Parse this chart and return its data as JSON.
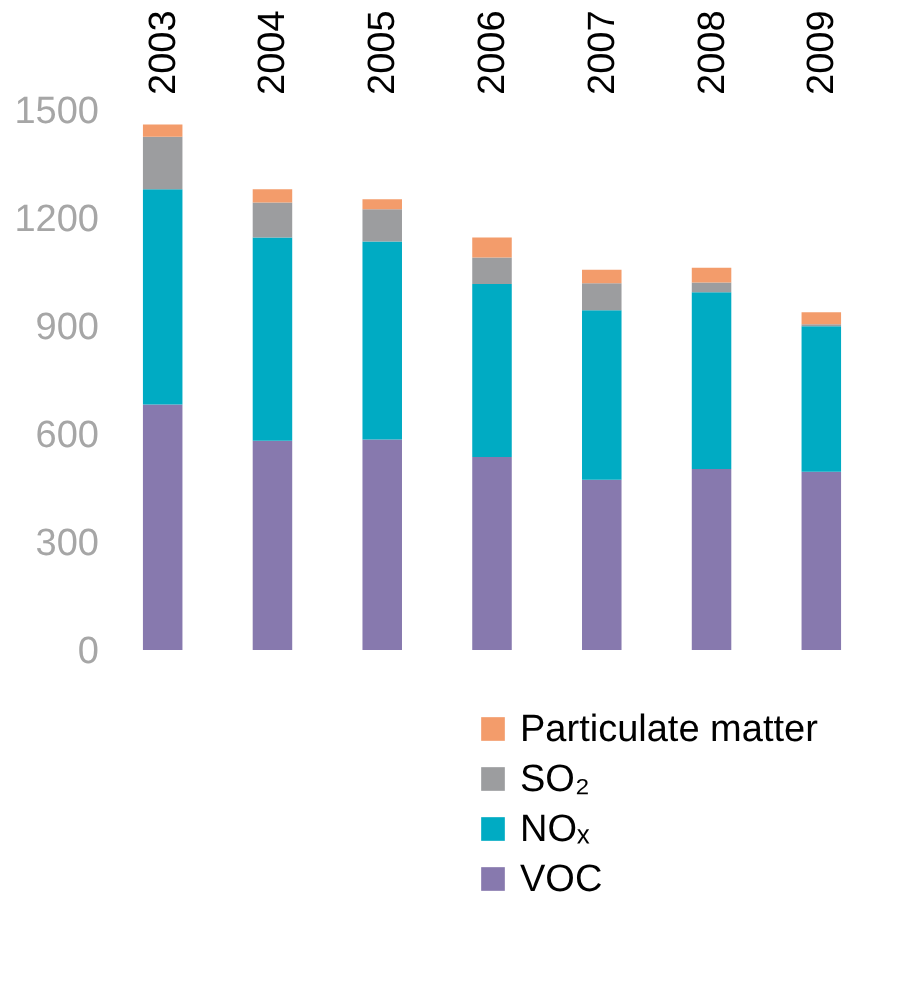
{
  "chart_data": {
    "type": "bar",
    "stacked": true,
    "categories": [
      "2003",
      "2004",
      "2005",
      "2006",
      "2007",
      "2008",
      "2009"
    ],
    "series": [
      {
        "name": "VOC",
        "color": "#8779ae",
        "values": [
          682,
          581,
          585,
          536,
          473,
          503,
          495
        ]
      },
      {
        "name": "NOₓ",
        "color": "#00abc3",
        "values": [
          598,
          565,
          550,
          481,
          471,
          491,
          404
        ]
      },
      {
        "name": "SO₂",
        "color": "#9c9d9f",
        "values": [
          146,
          97,
          89,
          73,
          75,
          27,
          6
        ]
      },
      {
        "name": "Particulate matter",
        "color": "#f39c6b",
        "values": [
          34,
          37,
          28,
          56,
          37,
          41,
          33
        ]
      }
    ],
    "ylim": [
      0,
      1500
    ],
    "yticks": [
      0,
      300,
      600,
      900,
      1200,
      1500
    ],
    "grid": false,
    "legend": "bottom right"
  }
}
